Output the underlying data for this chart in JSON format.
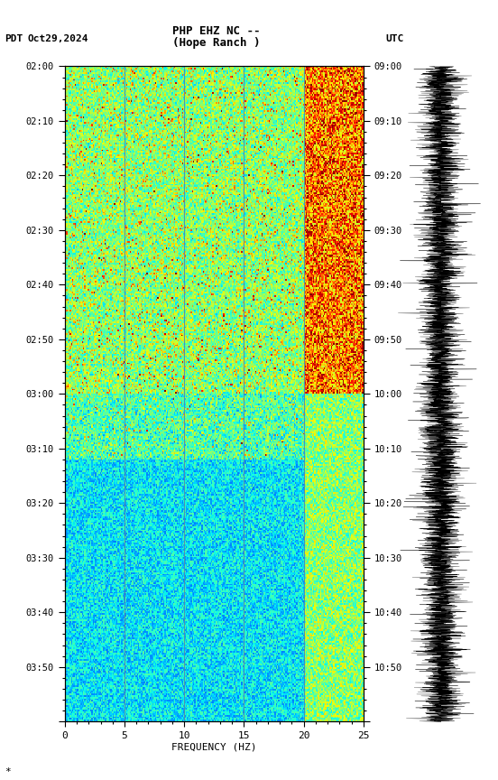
{
  "title_line1": "PHP EHZ NC --",
  "title_line2": "(Hope Ranch )",
  "left_label": "PDT   Oct29,2024",
  "right_label": "UTC",
  "pdt_times": [
    "02:00",
    "02:10",
    "02:20",
    "02:30",
    "02:40",
    "02:50",
    "03:00",
    "03:10",
    "03:20",
    "03:30",
    "03:40",
    "03:50"
  ],
  "utc_times": [
    "09:00",
    "09:10",
    "09:20",
    "09:30",
    "09:40",
    "09:50",
    "10:00",
    "10:10",
    "10:20",
    "10:30",
    "10:40",
    "10:50"
  ],
  "freq_min": 0,
  "freq_max": 25,
  "freq_ticks": [
    0,
    5,
    10,
    15,
    20,
    25
  ],
  "freq_label": "FREQUENCY (HZ)",
  "vertical_lines": [
    5,
    10,
    15,
    20
  ],
  "spectrogram_cmap": "jet",
  "background_color": "#ffffff",
  "waveform_color": "#000000",
  "time_minutes": 60,
  "seed": 42
}
